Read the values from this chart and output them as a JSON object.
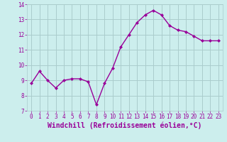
{
  "x": [
    0,
    1,
    2,
    3,
    4,
    5,
    6,
    7,
    8,
    9,
    10,
    11,
    12,
    13,
    14,
    15,
    16,
    17,
    18,
    19,
    20,
    21,
    22,
    23
  ],
  "y": [
    8.8,
    9.6,
    9.0,
    8.5,
    9.0,
    9.1,
    9.1,
    8.9,
    7.4,
    8.8,
    9.8,
    11.2,
    12.0,
    12.8,
    13.3,
    13.6,
    13.3,
    12.6,
    12.3,
    12.2,
    11.9,
    11.6,
    11.6,
    11.6
  ],
  "line_color": "#990099",
  "marker": "D",
  "marker_size": 2,
  "bg_color": "#cceeed",
  "grid_color": "#aacccc",
  "xlabel": "Windchill (Refroidissement éolien,°C)",
  "ylim": [
    7,
    14
  ],
  "xlim_min": -0.5,
  "xlim_max": 23.5,
  "yticks": [
    7,
    8,
    9,
    10,
    11,
    12,
    13,
    14
  ],
  "xticks": [
    0,
    1,
    2,
    3,
    4,
    5,
    6,
    7,
    8,
    9,
    10,
    11,
    12,
    13,
    14,
    15,
    16,
    17,
    18,
    19,
    20,
    21,
    22,
    23
  ],
  "tick_color": "#990099",
  "label_color": "#990099",
  "tick_fontsize": 5.5,
  "xlabel_fontsize": 7.0,
  "linewidth": 1.0
}
